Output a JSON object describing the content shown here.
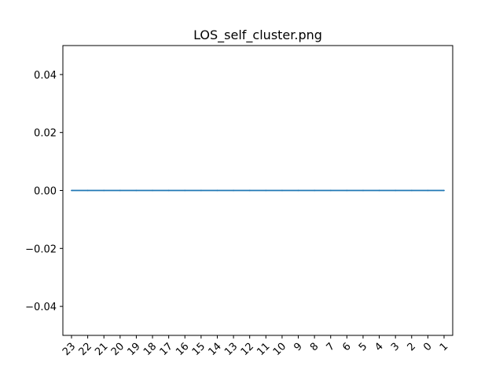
{
  "chart_data": {
    "type": "line",
    "title": "LOS_self_cluster.png",
    "xlabel": "",
    "ylabel": "",
    "categories": [
      "23",
      "22",
      "21",
      "20",
      "19",
      "18",
      "17",
      "16",
      "15",
      "14",
      "13",
      "12",
      "11",
      "10",
      "9",
      "8",
      "7",
      "6",
      "5",
      "4",
      "3",
      "2",
      "0",
      "1"
    ],
    "series": [
      {
        "values": [
          0,
          0,
          0,
          0,
          0,
          0,
          0,
          0,
          0,
          0,
          0,
          0,
          0,
          0,
          0,
          0,
          0,
          0,
          0,
          0,
          0,
          0,
          0,
          0
        ],
        "color": "#1f77b4"
      }
    ],
    "ylim": [
      -0.05,
      0.05
    ],
    "yticks": [
      -0.04,
      -0.02,
      0.0,
      0.02,
      0.04
    ],
    "ytick_labels": [
      "−0.04",
      "−0.02",
      "0.00",
      "0.02",
      "0.04"
    ],
    "xtick_rotation_deg": 45,
    "grid": false,
    "legend": "none"
  }
}
